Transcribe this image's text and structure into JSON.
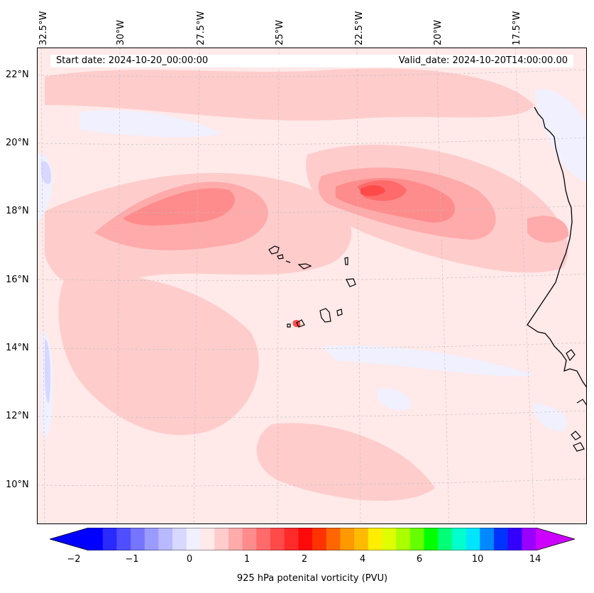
{
  "map": {
    "start_date_text": "Start date: 2024-10-20_00:00:00",
    "valid_date_text": "Valid_date: 2024-10-20T14:00:00.00",
    "longitude_labels": [
      "32.5°W",
      "30°W",
      "27.5°W",
      "25°W",
      "22.5°W",
      "20°W",
      "17.5°W"
    ],
    "latitude_labels": [
      "22°N",
      "20°N",
      "18°N",
      "16°N",
      "14°N",
      "12°N",
      "10°N"
    ],
    "background_color": "#ffe9e9",
    "coastline_color": "#000000"
  },
  "colorbar": {
    "label": "925 hPa potenital vorticity (PVU)",
    "tick_labels": [
      "−2",
      "−1",
      "0",
      "1",
      "2",
      "4",
      "6",
      "10",
      "14"
    ],
    "colors": [
      "#0000ff",
      "#2a2aff",
      "#4f4fff",
      "#7575ff",
      "#9b9bff",
      "#b9b9ff",
      "#d7d7ff",
      "#f0f0ff",
      "#ffe9e9",
      "#ffcccc",
      "#ffabab",
      "#ff8c8c",
      "#ff6b6b",
      "#ff4a4a",
      "#ff2a2a",
      "#ff0a0a",
      "#ff3300",
      "#ff6600",
      "#ff9900",
      "#ffbb00",
      "#ffee00",
      "#ddff00",
      "#aaff00",
      "#66ff00",
      "#00ff00",
      "#00ff77",
      "#00ffcc",
      "#00e5ff",
      "#0088ff",
      "#0033ff",
      "#3300ff",
      "#9900ff"
    ],
    "under_color": "#0000ff",
    "over_color": "#cc00ff"
  }
}
